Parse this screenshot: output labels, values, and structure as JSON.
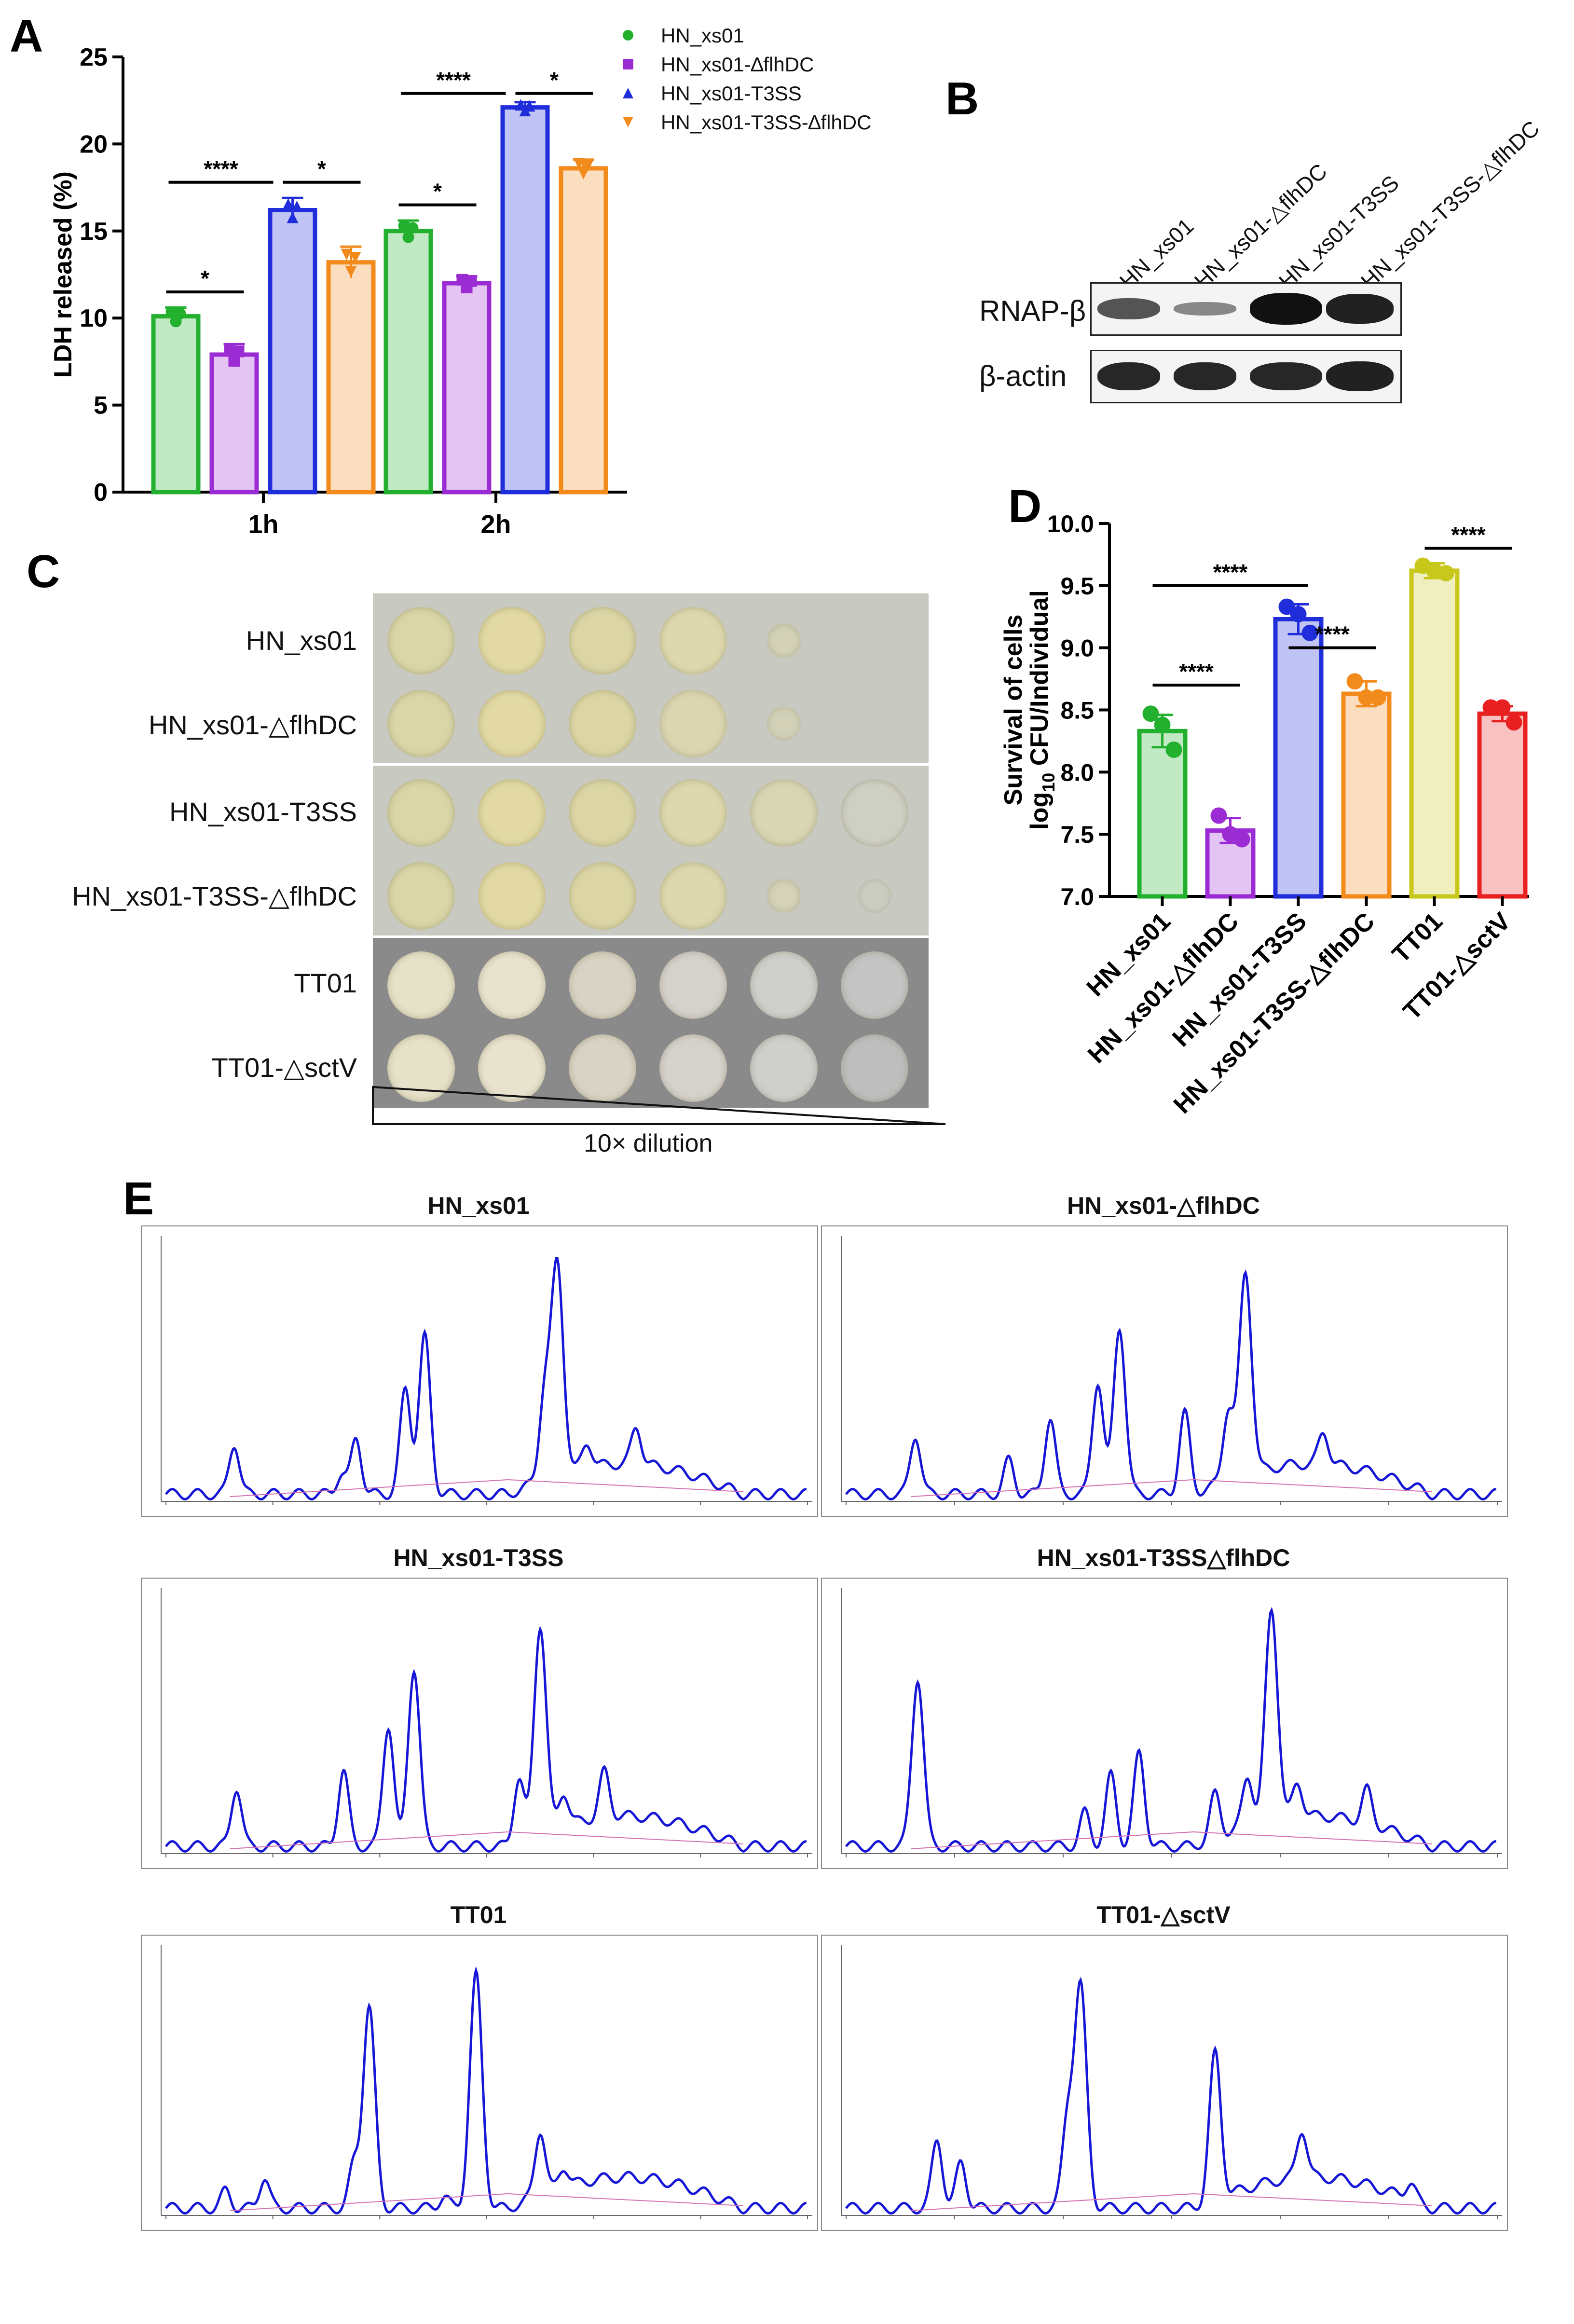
{
  "panels": {
    "A": "A",
    "B": "B",
    "C": "C",
    "D": "D",
    "E": "E"
  },
  "colors": {
    "green": "#22b02e",
    "purple": "#9b2cd4",
    "blue": "#1f2ddb",
    "orange": "#f28a1c",
    "yellow": "#c8c71c",
    "red": "#e82020"
  },
  "chart_data": [
    {
      "id": "A",
      "type": "bar",
      "ylabel": "LDH released (%)",
      "xlabel": "",
      "ylim": [
        0,
        25
      ],
      "yticks": [
        0,
        5,
        10,
        15,
        20,
        25
      ],
      "categories": [
        "1h",
        "2h"
      ],
      "series": [
        {
          "name": "HN_xs01",
          "values": [
            10.1,
            15.0
          ],
          "err": [
            0.5,
            0.6
          ],
          "color": "#22b02e",
          "marker": "circle"
        },
        {
          "name": "HN_xs01-∆flhDC",
          "values": [
            7.9,
            12.0
          ],
          "err": [
            0.6,
            0.4
          ],
          "color": "#9b2cd4",
          "marker": "square"
        },
        {
          "name": "HN_xs01-T3SS",
          "values": [
            16.2,
            22.1
          ],
          "err": [
            0.7,
            0.3
          ],
          "color": "#1f2ddb",
          "marker": "triangle-up"
        },
        {
          "name": "HN_xs01-T3SS-∆flhDC",
          "values": [
            13.2,
            18.6
          ],
          "err": [
            0.9,
            0.5
          ],
          "color": "#f28a1c",
          "marker": "triangle-down"
        }
      ],
      "significance": [
        {
          "category": 0,
          "from": 0,
          "to": 1,
          "y": 11.5,
          "label": "*"
        },
        {
          "category": 0,
          "from": 0,
          "to": 2,
          "y": 17.8,
          "label": "****"
        },
        {
          "category": 0,
          "from": 2,
          "to": 3,
          "y": 17.8,
          "label": "*"
        },
        {
          "category": 1,
          "from": 0,
          "to": 1,
          "y": 16.5,
          "label": "*"
        },
        {
          "category": 1,
          "from": 0,
          "to": 2,
          "y": 22.9,
          "label": "****"
        },
        {
          "category": 1,
          "from": 2,
          "to": 3,
          "y": 22.9,
          "label": "*"
        }
      ],
      "legend_position": "top-right"
    },
    {
      "id": "D",
      "type": "bar",
      "ylabel_line1": "Survival of cells",
      "ylabel_line2_prefix": "log",
      "ylabel_line2_sub": "10",
      "ylabel_line2_suffix": " CFU/Individual",
      "ylim": [
        7.0,
        10.0
      ],
      "yticks": [
        "7.0",
        "7.5",
        "8.0",
        "8.5",
        "9.0",
        "9.5",
        "10.0"
      ],
      "categories": [
        "HN_xs01",
        "HN_xs01-△flhDC",
        "HN_xs01-T3SS",
        "HN_xs01-T3SS-△flhDC",
        "TT01",
        "TT01-△sctV"
      ],
      "values": [
        8.33,
        7.53,
        9.23,
        8.63,
        9.62,
        8.47
      ],
      "err": [
        0.13,
        0.1,
        0.12,
        0.1,
        0.06,
        0.06
      ],
      "points": [
        [
          8.47,
          8.38,
          8.18
        ],
        [
          7.65,
          7.5,
          7.46
        ],
        [
          9.33,
          9.27,
          9.12
        ],
        [
          8.73,
          8.6,
          8.6
        ],
        [
          9.66,
          9.62,
          9.6
        ],
        [
          8.52,
          8.52,
          8.4
        ]
      ],
      "colors": [
        "#22b02e",
        "#9b2cd4",
        "#1f2ddb",
        "#f28a1c",
        "#c8c71c",
        "#e82020"
      ],
      "significance": [
        {
          "from": 0,
          "to": 1,
          "y": 8.7,
          "label": "****"
        },
        {
          "from": 0,
          "to": 2,
          "y": 9.5,
          "label": "****"
        },
        {
          "from": 2,
          "to": 3,
          "y": 9.0,
          "label": "****"
        },
        {
          "from": 4,
          "to": 5,
          "y": 9.8,
          "label": "****"
        }
      ]
    },
    {
      "id": "E",
      "type": "line",
      "charts": [
        {
          "title": "HN_xs01",
          "peaks": [
            [
              3.2,
              0.3
            ],
            [
              8.2,
              0.12
            ],
            [
              8.9,
              0.33
            ],
            [
              11.2,
              0.62
            ],
            [
              12.1,
              0.93
            ],
            [
              17.7,
              0.5
            ],
            [
              18.3,
              1.25
            ],
            [
              19.7,
              0.15
            ],
            [
              22.0,
              0.22
            ]
          ]
        },
        {
          "title": "HN_xs01-△flhDC",
          "peaks": [
            [
              3.2,
              0.35
            ],
            [
              7.5,
              0.2
            ],
            [
              9.4,
              0.45
            ],
            [
              11.6,
              0.67
            ],
            [
              12.6,
              0.99
            ],
            [
              15.6,
              0.48
            ],
            [
              17.6,
              0.42
            ],
            [
              18.4,
              1.2
            ],
            [
              22.0,
              0.19
            ]
          ]
        },
        {
          "title": "HN_xs01-T3SS",
          "peaks": [
            [
              3.3,
              0.35
            ],
            [
              8.3,
              0.45
            ],
            [
              10.4,
              0.72
            ],
            [
              11.6,
              1.06
            ],
            [
              16.5,
              0.38
            ],
            [
              17.5,
              1.24
            ],
            [
              18.6,
              0.2
            ],
            [
              20.5,
              0.27
            ]
          ]
        },
        {
          "title": "HN_xs01-T3SS△flhDC",
          "peaks": [
            [
              3.3,
              1.0
            ],
            [
              11.0,
              0.2
            ],
            [
              12.2,
              0.42
            ],
            [
              13.5,
              0.55
            ],
            [
              17.0,
              0.26
            ],
            [
              18.5,
              0.3
            ],
            [
              19.6,
              1.25
            ],
            [
              20.8,
              0.2
            ],
            [
              24.0,
              0.2
            ]
          ]
        },
        {
          "title": "TT01",
          "peaks": [
            [
              2.8,
              0.1
            ],
            [
              4.6,
              0.18
            ],
            [
              8.8,
              0.25
            ],
            [
              9.5,
              1.17
            ],
            [
              13.0,
              0.07
            ],
            [
              14.5,
              1.35
            ],
            [
              17.5,
              0.38
            ],
            [
              18.6,
              0.12
            ]
          ]
        },
        {
          "title": "TT01-△sctV",
          "peaks": [
            [
              4.2,
              0.4
            ],
            [
              5.3,
              0.27
            ],
            [
              10.2,
              0.5
            ],
            [
              10.8,
              1.28
            ],
            [
              17.0,
              0.85
            ],
            [
              21.0,
              0.28
            ],
            [
              26.0,
              0.1
            ]
          ]
        }
      ]
    }
  ],
  "panelB": {
    "lanes": [
      "HN_xs01",
      "HN_xs01-△flhDC",
      "HN_xs01-T3SS",
      "HN_xs01-T3SS-△flhDC"
    ],
    "rows": [
      {
        "label": "RNAP-β",
        "intensities": [
          0.55,
          0.2,
          1.0,
          0.9
        ]
      },
      {
        "label": "β-actin",
        "intensities": [
          0.85,
          0.85,
          0.85,
          0.9
        ]
      }
    ]
  },
  "panelC": {
    "strains": [
      "HN_xs01",
      "HN_xs01-△flhDC",
      "HN_xs01-T3SS",
      "HN_xs01-T3SS-△flhDC",
      "TT01",
      "TT01-△sctV"
    ],
    "dilution_label": "10× dilution"
  }
}
